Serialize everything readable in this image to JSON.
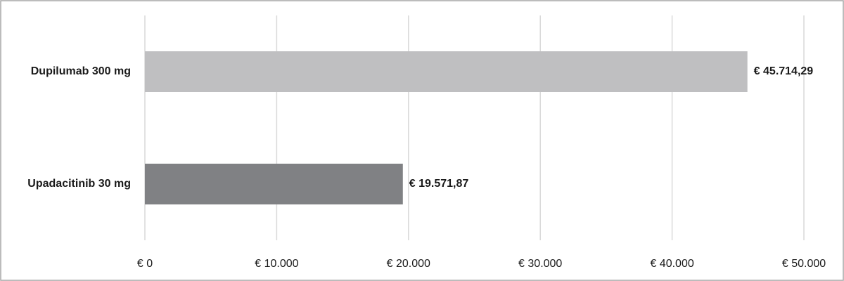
{
  "chart_data": {
    "type": "barh",
    "categories": [
      "Dupilumab 300 mg",
      "Upadacitinib 30 mg"
    ],
    "values": [
      45714.29,
      19571.87
    ],
    "value_labels": [
      "€ 45.714,29",
      "€ 19.571,87"
    ],
    "colors": [
      "#bfbfc1",
      "#808184"
    ],
    "xlim": [
      0,
      50000
    ],
    "xticks": [
      {
        "value": 0,
        "label": "€ 0"
      },
      {
        "value": 10000,
        "label": "€ 10.000"
      },
      {
        "value": 20000,
        "label": "€ 20.000"
      },
      {
        "value": 30000,
        "label": "€ 30.000"
      },
      {
        "value": 40000,
        "label": "€ 40.000"
      },
      {
        "value": 50000,
        "label": "€ 50.000"
      }
    ],
    "grid": true
  }
}
